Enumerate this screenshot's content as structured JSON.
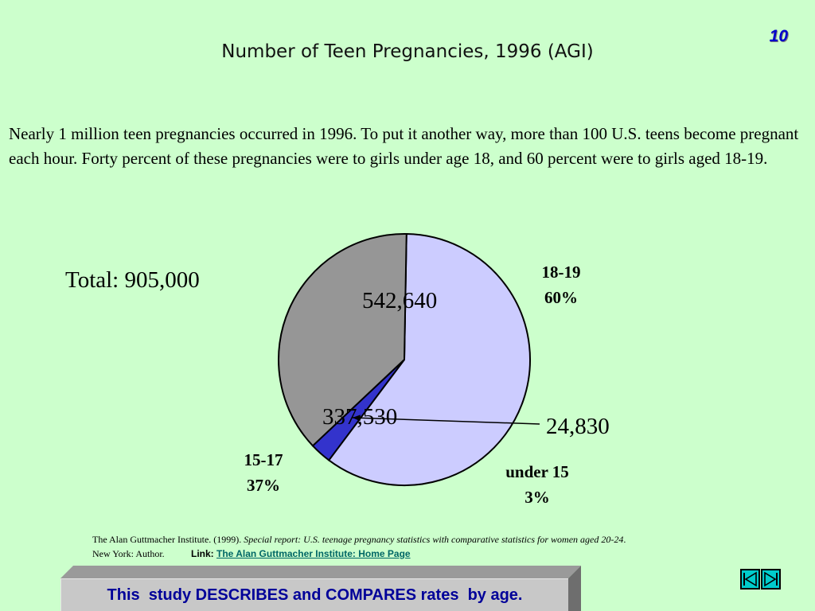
{
  "slide_number": "10",
  "title": "Number of Teen Pregnancies, 1996 (AGI)",
  "intro": "Nearly 1 million teen pregnancies occurred in 1996.  To put it another way, more than 100 U.S. teens become pregnant each hour.  Forty percent of these pregnancies were to girls under age 18, and 60 percent were to girls aged 18-19.",
  "total": "Total: 905,000",
  "chart_data": {
    "type": "pie",
    "title": "Number of Teen Pregnancies, 1996 (AGI)",
    "categories": [
      "18-19",
      "under 15",
      "15-17"
    ],
    "values": [
      542640,
      24830,
      337530
    ],
    "value_labels": [
      "542,640",
      "24,830",
      "337,530"
    ],
    "percent_labels": [
      "60%",
      "3%",
      "37%"
    ],
    "colors": [
      "#ccccff",
      "#3333cc",
      "#969696"
    ]
  },
  "citation": {
    "text": "The Alan Guttmacher Institute. (1999). ",
    "italic": "Special report: U.S. teenage pregnancy statistics with comparative statistics for women aged 20-24",
    "end": ".",
    "line2": "New York: Author."
  },
  "link": {
    "prefix": "Link: ",
    "text": "The Alan Guttmacher Institute: Home Page"
  },
  "banner": "This  study DESCRIBES and COMPARES rates  by age.",
  "nav": {
    "prev_icon": "previous-icon",
    "next_icon": "next-icon"
  }
}
